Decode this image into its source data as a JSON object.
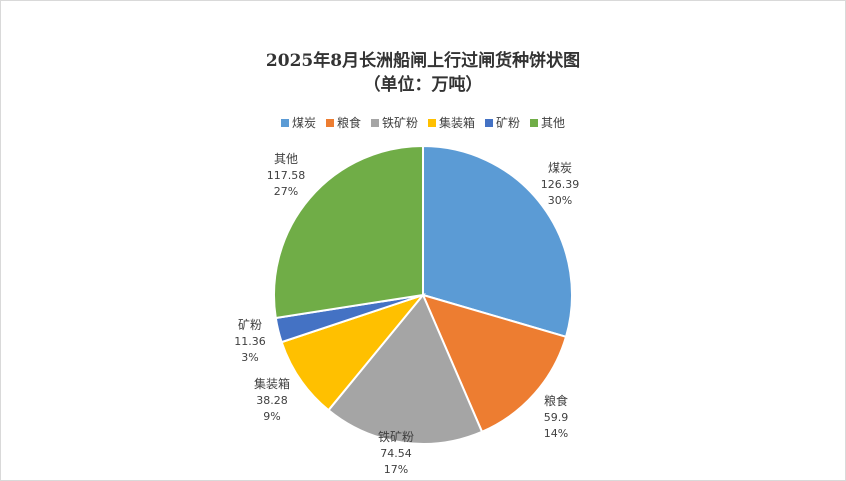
{
  "chart_data": {
    "type": "pie",
    "title_line1": "2025年8月长洲船闸上行过闸货种饼状图",
    "title_line2": "（单位：万吨）",
    "legend_position": "top",
    "colors": [
      "#5b9bd5",
      "#ed7d31",
      "#a5a5a5",
      "#ffc000",
      "#4472c4",
      "#70ad47"
    ],
    "slices": [
      {
        "name": "煤炭",
        "value": 126.39,
        "value_label": "126.39",
        "percent": "30%"
      },
      {
        "name": "粮食",
        "value": 59.9,
        "value_label": "59.9",
        "percent": "14%"
      },
      {
        "name": "铁矿粉",
        "value": 74.54,
        "value_label": "74.54",
        "percent": "17%"
      },
      {
        "name": "集装箱",
        "value": 38.28,
        "value_label": "38.28",
        "percent": "9%"
      },
      {
        "name": "矿粉",
        "value": 11.36,
        "value_label": "11.36",
        "percent": "3%"
      },
      {
        "name": "其他",
        "value": 117.58,
        "value_label": "117.58",
        "percent": "27%"
      }
    ]
  }
}
